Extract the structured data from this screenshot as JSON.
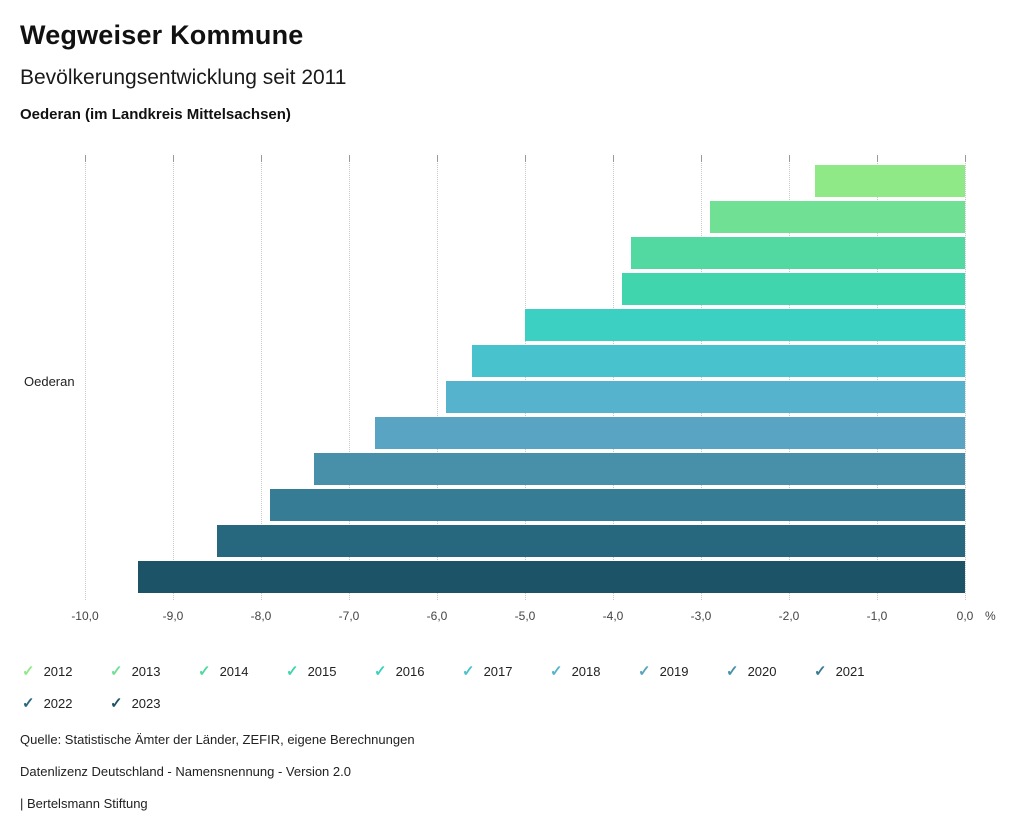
{
  "header": {
    "title": "Wegweiser Kommune",
    "subtitle": "Bevölkerungsentwicklung seit 2011",
    "location": "Oederan (im Landkreis Mittelsachsen)"
  },
  "chart_data": {
    "type": "bar",
    "orientation": "horizontal",
    "group_label": "Oederan",
    "xlabel": "",
    "ylabel": "Oederan",
    "x_unit": "%",
    "xlim": [
      -10,
      0
    ],
    "grid": true,
    "legend_position": "bottom",
    "x_ticks": [
      "-10,0",
      "-9,0",
      "-8,0",
      "-7,0",
      "-6,0",
      "-5,0",
      "-4,0",
      "-3,0",
      "-2,0",
      "-1,0",
      "0,0"
    ],
    "series": [
      {
        "name": "2012",
        "value": -1.7,
        "color": "#90e987"
      },
      {
        "name": "2013",
        "value": -2.9,
        "color": "#6fe094"
      },
      {
        "name": "2014",
        "value": -3.8,
        "color": "#52d9a1"
      },
      {
        "name": "2015",
        "value": -3.9,
        "color": "#40d5ad"
      },
      {
        "name": "2016",
        "value": -5.0,
        "color": "#3bd0c1"
      },
      {
        "name": "2017",
        "value": -5.6,
        "color": "#48c3ce"
      },
      {
        "name": "2018",
        "value": -5.9,
        "color": "#56b3cd"
      },
      {
        "name": "2019",
        "value": -6.7,
        "color": "#59a3c3"
      },
      {
        "name": "2020",
        "value": -7.4,
        "color": "#4890aa"
      },
      {
        "name": "2021",
        "value": -7.9,
        "color": "#377c95"
      },
      {
        "name": "2022",
        "value": -8.5,
        "color": "#28687f"
      },
      {
        "name": "2023",
        "value": -9.4,
        "color": "#1c5366"
      }
    ]
  },
  "legend": {
    "check_glyph": "✓"
  },
  "footer": {
    "source": "Quelle: Statistische Ämter der Länder, ZEFIR, eigene Berechnungen",
    "license": "Datenlizenz Deutschland - Namensnennung - Version 2.0",
    "attribution": "| Bertelsmann Stiftung"
  }
}
